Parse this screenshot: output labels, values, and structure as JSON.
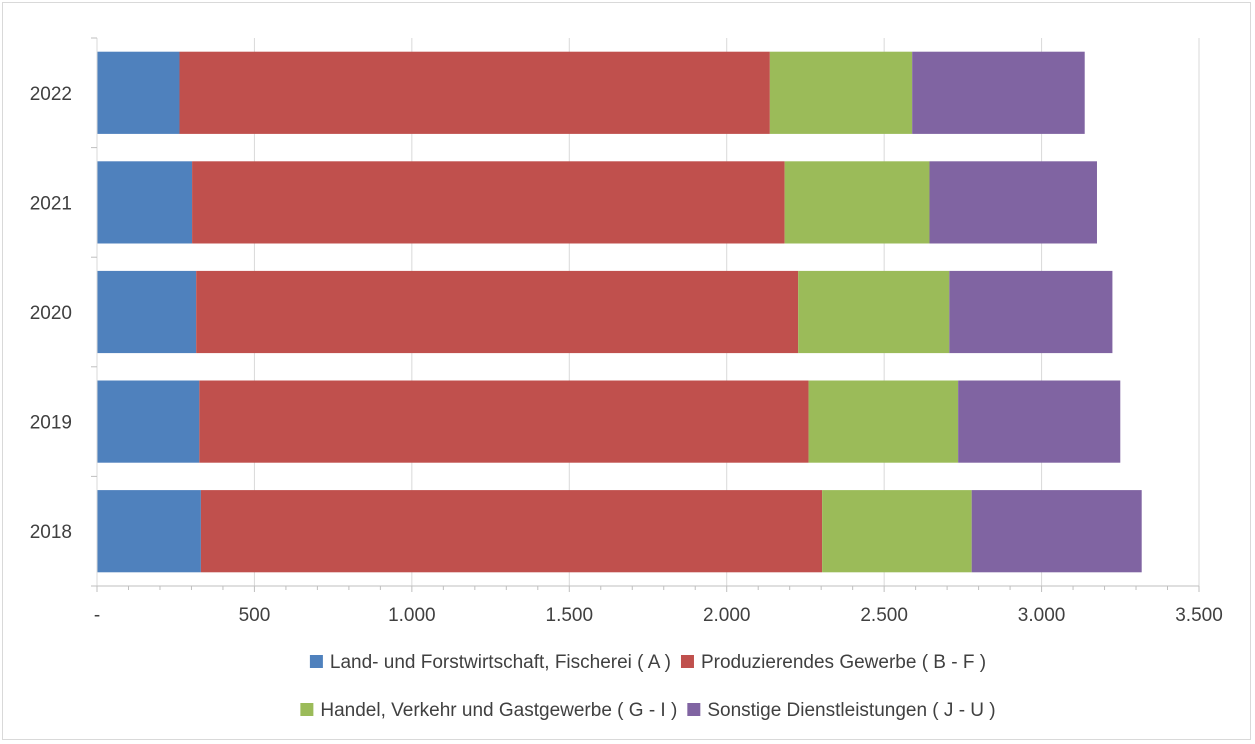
{
  "chart_data": {
    "type": "bar",
    "orientation": "horizontal",
    "stacked": true,
    "categories": [
      "2022",
      "2021",
      "2020",
      "2019",
      "2018"
    ],
    "series": [
      {
        "name": "Land- und Forstwirtschaft, Fischerei ( A )",
        "color": "#4F81BD",
        "values": [
          262,
          302,
          315,
          325,
          330
        ]
      },
      {
        "name": "Produzierendes Gewerbe ( B - F )",
        "color": "#C0504D",
        "values": [
          1875,
          1882,
          1912,
          1935,
          1973
        ]
      },
      {
        "name": "Handel, Verkehr und Gastgewerbe ( G - I )",
        "color": "#9BBB59",
        "values": [
          452,
          460,
          480,
          475,
          475
        ]
      },
      {
        "name": "Sonstige Dienstleistungen ( J - U )",
        "color": "#8064A2",
        "values": [
          548,
          532,
          518,
          515,
          540
        ]
      }
    ],
    "x_ticks": [
      "-",
      "500",
      "1.000",
      "1.500",
      "2.000",
      "2.500",
      "3.000",
      "3.500"
    ],
    "xlim": [
      0,
      3500
    ],
    "grid": true,
    "legend_position": "bottom"
  }
}
